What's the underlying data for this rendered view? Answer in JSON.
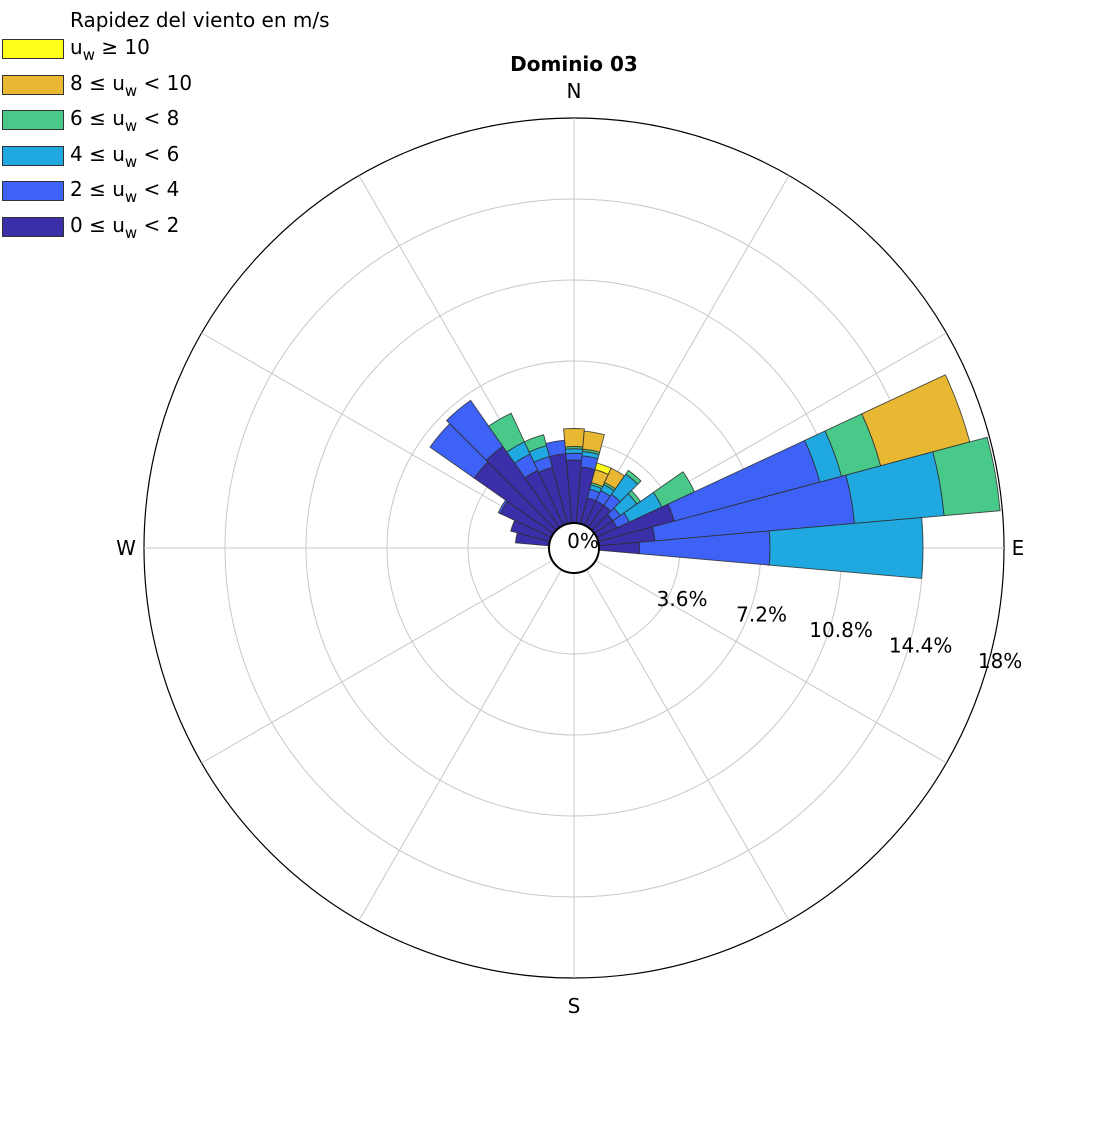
{
  "chart_data": {
    "type": "polar-bar",
    "title": "Dominio 03",
    "directions": {
      "north": "N",
      "east": "E",
      "south": "S",
      "west": "W"
    },
    "radial_ticks": [
      "0%",
      "3.6%",
      "7.2%",
      "10.8%",
      "14.4%",
      "18%"
    ],
    "radial_tick_values": [
      0,
      3.6,
      7.2,
      10.8,
      14.4,
      18
    ],
    "rmax": 18,
    "sector_width_deg": 10,
    "legend": {
      "title": "Rapidez del viento en m/s",
      "placement": "top-left",
      "entries": [
        {
          "label_pre": "u",
          "label_sub": "w",
          "label_post": " ≥ 10",
          "color": "#ffff1a"
        },
        {
          "label_pre": "8 ≤ u",
          "label_sub": "w",
          "label_post": " < 10",
          "color": "#e9b832"
        },
        {
          "label_pre": "6 ≤ u",
          "label_sub": "w",
          "label_post": " < 8",
          "color": "#48c98a"
        },
        {
          "label_pre": "4 ≤ u",
          "label_sub": "w",
          "label_post": " < 6",
          "color": "#1fa9e0"
        },
        {
          "label_pre": "2 ≤ u",
          "label_sub": "w",
          "label_post": " < 4",
          "color": "#3e62f5"
        },
        {
          "label_pre": "0 ≤ u",
          "label_sub": "w",
          "label_post": " < 2",
          "color": "#3a2fa8"
        }
      ]
    },
    "bins": [
      "0-2",
      "2-4",
      "4-6",
      "6-8",
      "8-10",
      ">=10"
    ],
    "colors": [
      "#3a2fa8",
      "#3e62f5",
      "#1fa9e0",
      "#48c98a",
      "#e9b832",
      "#ffff1a"
    ],
    "sectors": [
      {
        "direction_deg": 0,
        "cumulative": [
          2.8,
          3.1,
          3.3,
          3.4,
          4.2,
          4.2
        ]
      },
      {
        "direction_deg": 10,
        "cumulative": [
          2.5,
          3.0,
          3.2,
          3.3,
          4.1,
          4.1
        ]
      },
      {
        "direction_deg": 20,
        "cumulative": [
          1.2,
          1.6,
          1.8,
          1.9,
          2.5,
          2.8
        ]
      },
      {
        "direction_deg": 30,
        "cumulative": [
          1.2,
          1.7,
          2.0,
          2.1,
          2.8,
          2.8
        ]
      },
      {
        "direction_deg": 40,
        "cumulative": [
          1.2,
          1.8,
          2.9,
          3.1,
          3.1,
          3.1
        ]
      },
      {
        "direction_deg": 50,
        "cumulative": [
          1.0,
          1.4,
          2.3,
          2.5,
          2.5,
          2.5
        ]
      },
      {
        "direction_deg": 60,
        "cumulative": [
          1.0,
          1.6,
          3.2,
          4.8,
          4.8,
          4.8
        ]
      },
      {
        "direction_deg": 70,
        "cumulative": [
          3.5,
          10.2,
          11.2,
          13.0,
          17.1,
          17.1
        ]
      },
      {
        "direction_deg": 80,
        "cumulative": [
          2.5,
          11.4,
          15.4,
          17.9,
          17.9,
          17.9
        ]
      },
      {
        "direction_deg": 90,
        "cumulative": [
          1.8,
          7.6,
          14.4,
          14.4,
          14.4,
          14.4
        ]
      },
      {
        "direction_deg": 280,
        "cumulative": [
          1.5,
          1.5,
          1.5,
          1.5,
          1.5,
          1.5
        ]
      },
      {
        "direction_deg": 290,
        "cumulative": [
          1.8,
          1.8,
          1.8,
          1.8,
          1.8,
          1.8
        ]
      },
      {
        "direction_deg": 300,
        "cumulative": [
          2.5,
          2.6,
          2.6,
          2.6,
          2.6,
          2.6
        ]
      },
      {
        "direction_deg": 310,
        "cumulative": [
          4.3,
          6.7,
          6.7,
          6.7,
          6.7,
          6.7
        ]
      },
      {
        "direction_deg": 320,
        "cumulative": [
          4.4,
          6.9,
          6.9,
          6.9,
          6.9,
          6.9
        ]
      },
      {
        "direction_deg": 330,
        "cumulative": [
          2.7,
          3.5,
          4.1,
          5.5,
          5.5,
          5.5
        ]
      },
      {
        "direction_deg": 340,
        "cumulative": [
          2.6,
          3.1,
          3.6,
          4.1,
          4.1,
          4.1
        ]
      },
      {
        "direction_deg": 350,
        "cumulative": [
          3.1,
          3.7,
          3.7,
          3.7,
          3.7,
          3.7
        ]
      }
    ]
  }
}
